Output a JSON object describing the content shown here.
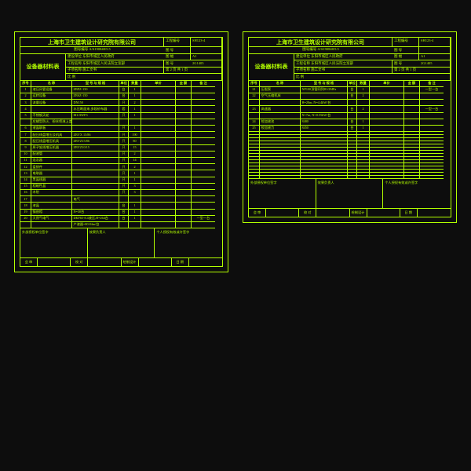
{
  "colors": {
    "ink": "#b3ff00",
    "bg": "#0d0d0d"
  },
  "sheets": [
    {
      "title": "上海市卫生建筑设计研究院有限公司",
      "code": "图号编号  A/S190848/5.5",
      "bigLabel": "设备器材料表",
      "meta": [
        [
          "工程编号",
          "SH123-4"
        ],
        [
          "图  号",
          ""
        ],
        [
          "图  幅",
          "A1"
        ],
        [
          "比  例",
          ""
        ]
      ],
      "info": [
        {
          "k": "建设单位",
          "v": "东阳市城区人民政府"
        },
        {
          "k": "工程名称",
          "v": "东阳市城区人民法院立案部",
          "r": "图  号",
          "rv": "2G1405"
        },
        {
          "k": "子项名称",
          "v": "施工文书",
          "r": "第 2 页 共 1 页"
        }
      ],
      "colhead": [
        "序号",
        "名  称",
        "型 号 与 规 格",
        "单位",
        "数量",
        "单价",
        "金 额",
        "备 注"
      ],
      "rows": [
        [
          "1",
          "液压风管设备",
          "ZBPZ-150",
          "台",
          "1",
          "",
          "",
          ""
        ],
        [
          "2",
          "运转设备",
          "ZBSZ-150",
          "台",
          "1",
          "",
          "",
          ""
        ],
        [
          "3",
          "流量设备",
          "DN150",
          "只",
          "2",
          "",
          "",
          ""
        ],
        [
          "4",
          "",
          "水压断面来,多段砂布器",
          "套",
          "1",
          "",
          "",
          ""
        ],
        [
          "5",
          "不锈钢天轮",
          "M1/AWF3",
          "只",
          "1",
          "",
          "",
          ""
        ],
        [
          "",
          "应辅型防火、粉末喷淋上盖,",
          "",
          "",
          "",
          "",
          "",
          ""
        ],
        [
          "6",
          "液晶联板",
          "",
          "只",
          "1",
          "",
          "",
          ""
        ],
        [
          "7",
          "配压线盘增压及机具",
          "ZBYX 15/86",
          "只",
          "190",
          "",
          "",
          ""
        ],
        [
          "8",
          "配压线盘增压机具",
          "ZBYZ15/86",
          "只",
          "80",
          "",
          "",
          ""
        ],
        [
          "9",
          "原子架线增压机器",
          "ZBYZ10/15",
          "只",
          "15",
          "",
          "",
          ""
        ],
        [
          "10",
          "配液管",
          "",
          "只",
          "2",
          "",
          "",
          ""
        ],
        [
          "11",
          "连念器",
          "",
          "只",
          "14",
          "",
          "",
          ""
        ],
        [
          "12",
          "盘接件",
          "",
          "只",
          "2",
          "",
          "",
          ""
        ],
        [
          "13",
          "电联器",
          "",
          "只",
          "1",
          "",
          "",
          ""
        ],
        [
          "14",
          "黑晶线器",
          "",
          "只",
          "1",
          "",
          "",
          ""
        ],
        [
          "15",
          "相磁性晶",
          "",
          "只",
          "3",
          "",
          "",
          ""
        ],
        [
          "16",
          "木射",
          "",
          "只",
          "3",
          "",
          "",
          ""
        ],
        [
          "17",
          "",
          "电气",
          "",
          "",
          "",
          "",
          ""
        ],
        [
          "18",
          "液晶",
          "",
          "台",
          "1",
          "",
          "",
          ""
        ],
        [
          "19",
          "镇座相",
          "N=30台",
          "台",
          "1",
          "",
          "",
          ""
        ],
        [
          "20",
          "天然气电气",
          "DKF65-8.4液压,H=264台",
          "台",
          "1",
          "",
          "",
          "一型一台"
        ],
        [
          "",
          "",
          "产液器=80.84m/台",
          "",
          "",
          "",
          "",
          ""
        ]
      ],
      "sig": [
        "外部授权单位签字",
        "效果负责人",
        "个人授权有效或许签字"
      ],
      "foot": [
        "会 审",
        "",
        "校 对",
        "",
        "绘制设计",
        "",
        "日 期",
        ""
      ]
    },
    {
      "title": "上海市卫生建筑设计研究院有限公司",
      "code": "图号编号  A/S190848/5.5",
      "bigLabel": "设备器材料表",
      "meta": [
        [
          "工程编号",
          "SH123-4"
        ],
        [
          "图  号",
          ""
        ],
        [
          "图  幅",
          "A1"
        ],
        [
          "比  例",
          ""
        ]
      ],
      "info": [
        {
          "k": "建设单位",
          "v": "东阳市城区人民政府"
        },
        {
          "k": "工程名称",
          "v": "东阳市城区人民法院立案部",
          "r": "图  号",
          "rv": "2G1405"
        },
        {
          "k": "子项名称",
          "v": "施工文书",
          "r": "第 2 页 共 1 页"
        }
      ],
      "colhead": [
        "序号",
        "名  称",
        "型 号 与 规 格",
        "单位",
        "数量",
        "单价",
        "金 额",
        "备 注"
      ],
      "rows": [
        [
          "21",
          "压裂泵",
          "NP100顶管同列81/2MPa",
          "台",
          "1",
          "",
          "",
          "一型一台"
        ],
        [
          "22",
          "空气压缩机床",
          "",
          "台",
          "2",
          "",
          "",
          ""
        ],
        [
          "",
          "",
          "H=20m, N=4.4kW/台",
          "",
          "",
          "",
          "",
          ""
        ],
        [
          "23",
          "高速器",
          "",
          "台",
          "2",
          "",
          "",
          "一型一台"
        ],
        [
          "",
          "",
          "N=7m, N=0.55kW/台",
          "",
          "",
          "",
          "",
          ""
        ],
        [
          "24",
          "绞加液池",
          "8480",
          "台",
          "1",
          "",
          "",
          ""
        ],
        [
          "25",
          "绞加液力",
          "8450",
          "台",
          "1",
          "",
          "",
          ""
        ],
        [
          "",
          "",
          "",
          "",
          "",
          "",
          "",
          ""
        ],
        [
          "",
          "",
          "",
          "",
          "",
          "",
          "",
          ""
        ],
        [
          "",
          "",
          "",
          "",
          "",
          "",
          "",
          ""
        ],
        [
          "",
          "",
          "",
          "",
          "",
          "",
          "",
          ""
        ],
        [
          "",
          "",
          "",
          "",
          "",
          "",
          "",
          ""
        ],
        [
          "",
          "",
          "",
          "",
          "",
          "",
          "",
          ""
        ],
        [
          "",
          "",
          "",
          "",
          "",
          "",
          "",
          ""
        ],
        [
          "",
          "",
          "",
          "",
          "",
          "",
          "",
          ""
        ],
        [
          "",
          "",
          "",
          "",
          "",
          "",
          "",
          ""
        ],
        [
          "",
          "",
          "",
          "",
          "",
          "",
          "",
          ""
        ],
        [
          "",
          "",
          "",
          "",
          "",
          "",
          "",
          ""
        ],
        [
          "",
          "",
          "",
          "",
          "",
          "",
          "",
          ""
        ],
        [
          "",
          "",
          "",
          "",
          "",
          "",
          "",
          ""
        ],
        [
          "",
          "",
          "",
          "",
          "",
          "",
          "",
          ""
        ],
        [
          "",
          "",
          "",
          "",
          "",
          "",
          "",
          ""
        ]
      ],
      "sig": [
        "外部授权单位签字",
        "效果负责人",
        "个人授权有效或许签字"
      ],
      "foot": [
        "会 审",
        "",
        "校 对",
        "",
        "绘制设计",
        "",
        "日 期",
        ""
      ]
    }
  ]
}
